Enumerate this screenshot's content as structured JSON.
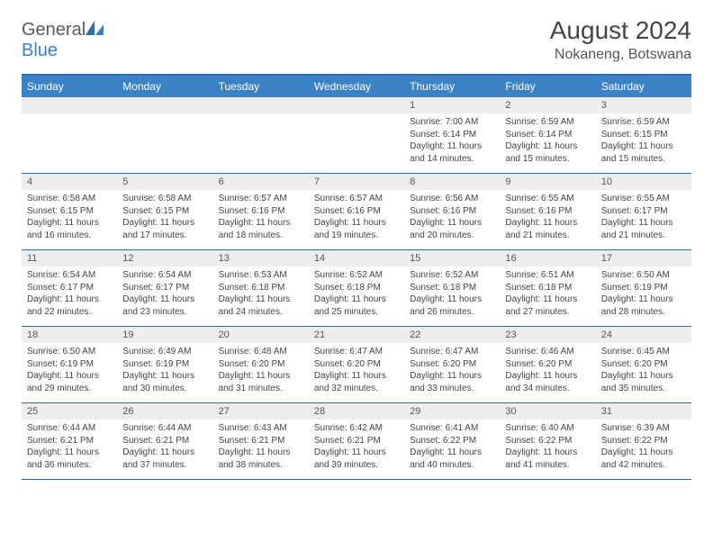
{
  "brand": {
    "part1": "General",
    "part2": "Blue"
  },
  "title": "August 2024",
  "location": "Nokaneng, Botswana",
  "colors": {
    "header_bg": "#3b82c4",
    "header_text": "#ffffff",
    "border": "#2f6fa8",
    "dayband": "#eceded",
    "text": "#444444"
  },
  "daysOfWeek": [
    "Sunday",
    "Monday",
    "Tuesday",
    "Wednesday",
    "Thursday",
    "Friday",
    "Saturday"
  ],
  "startWeekday": 4,
  "days": [
    {
      "n": 1,
      "sr": "7:00 AM",
      "ss": "6:14 PM",
      "dlh": 11,
      "dlm": 14
    },
    {
      "n": 2,
      "sr": "6:59 AM",
      "ss": "6:14 PM",
      "dlh": 11,
      "dlm": 15
    },
    {
      "n": 3,
      "sr": "6:59 AM",
      "ss": "6:15 PM",
      "dlh": 11,
      "dlm": 15
    },
    {
      "n": 4,
      "sr": "6:58 AM",
      "ss": "6:15 PM",
      "dlh": 11,
      "dlm": 16
    },
    {
      "n": 5,
      "sr": "6:58 AM",
      "ss": "6:15 PM",
      "dlh": 11,
      "dlm": 17
    },
    {
      "n": 6,
      "sr": "6:57 AM",
      "ss": "6:16 PM",
      "dlh": 11,
      "dlm": 18
    },
    {
      "n": 7,
      "sr": "6:57 AM",
      "ss": "6:16 PM",
      "dlh": 11,
      "dlm": 19
    },
    {
      "n": 8,
      "sr": "6:56 AM",
      "ss": "6:16 PM",
      "dlh": 11,
      "dlm": 20
    },
    {
      "n": 9,
      "sr": "6:55 AM",
      "ss": "6:16 PM",
      "dlh": 11,
      "dlm": 21
    },
    {
      "n": 10,
      "sr": "6:55 AM",
      "ss": "6:17 PM",
      "dlh": 11,
      "dlm": 21
    },
    {
      "n": 11,
      "sr": "6:54 AM",
      "ss": "6:17 PM",
      "dlh": 11,
      "dlm": 22
    },
    {
      "n": 12,
      "sr": "6:54 AM",
      "ss": "6:17 PM",
      "dlh": 11,
      "dlm": 23
    },
    {
      "n": 13,
      "sr": "6:53 AM",
      "ss": "6:18 PM",
      "dlh": 11,
      "dlm": 24
    },
    {
      "n": 14,
      "sr": "6:52 AM",
      "ss": "6:18 PM",
      "dlh": 11,
      "dlm": 25
    },
    {
      "n": 15,
      "sr": "6:52 AM",
      "ss": "6:18 PM",
      "dlh": 11,
      "dlm": 26
    },
    {
      "n": 16,
      "sr": "6:51 AM",
      "ss": "6:18 PM",
      "dlh": 11,
      "dlm": 27
    },
    {
      "n": 17,
      "sr": "6:50 AM",
      "ss": "6:19 PM",
      "dlh": 11,
      "dlm": 28
    },
    {
      "n": 18,
      "sr": "6:50 AM",
      "ss": "6:19 PM",
      "dlh": 11,
      "dlm": 29
    },
    {
      "n": 19,
      "sr": "6:49 AM",
      "ss": "6:19 PM",
      "dlh": 11,
      "dlm": 30
    },
    {
      "n": 20,
      "sr": "6:48 AM",
      "ss": "6:20 PM",
      "dlh": 11,
      "dlm": 31
    },
    {
      "n": 21,
      "sr": "6:47 AM",
      "ss": "6:20 PM",
      "dlh": 11,
      "dlm": 32
    },
    {
      "n": 22,
      "sr": "6:47 AM",
      "ss": "6:20 PM",
      "dlh": 11,
      "dlm": 33
    },
    {
      "n": 23,
      "sr": "6:46 AM",
      "ss": "6:20 PM",
      "dlh": 11,
      "dlm": 34
    },
    {
      "n": 24,
      "sr": "6:45 AM",
      "ss": "6:20 PM",
      "dlh": 11,
      "dlm": 35
    },
    {
      "n": 25,
      "sr": "6:44 AM",
      "ss": "6:21 PM",
      "dlh": 11,
      "dlm": 36
    },
    {
      "n": 26,
      "sr": "6:44 AM",
      "ss": "6:21 PM",
      "dlh": 11,
      "dlm": 37
    },
    {
      "n": 27,
      "sr": "6:43 AM",
      "ss": "6:21 PM",
      "dlh": 11,
      "dlm": 38
    },
    {
      "n": 28,
      "sr": "6:42 AM",
      "ss": "6:21 PM",
      "dlh": 11,
      "dlm": 39
    },
    {
      "n": 29,
      "sr": "6:41 AM",
      "ss": "6:22 PM",
      "dlh": 11,
      "dlm": 40
    },
    {
      "n": 30,
      "sr": "6:40 AM",
      "ss": "6:22 PM",
      "dlh": 11,
      "dlm": 41
    },
    {
      "n": 31,
      "sr": "6:39 AM",
      "ss": "6:22 PM",
      "dlh": 11,
      "dlm": 42
    }
  ],
  "labels": {
    "sunrise": "Sunrise:",
    "sunset": "Sunset:",
    "daylight": "Daylight:",
    "hours": "hours",
    "and": "and",
    "minutes": "minutes."
  }
}
